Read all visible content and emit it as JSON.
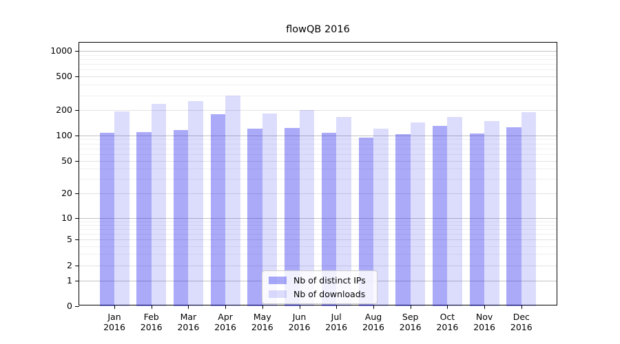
{
  "title": "flowQB 2016",
  "chart_data": {
    "type": "bar",
    "title": "flowQB 2016",
    "categories": [
      "Jan 2016",
      "Feb 2016",
      "Mar 2016",
      "Apr 2016",
      "May 2016",
      "Jun 2016",
      "Jul 2016",
      "Aug 2016",
      "Sep 2016",
      "Oct 2016",
      "Nov 2016",
      "Dec 2016"
    ],
    "series": [
      {
        "name": "Nb of distinct IPs",
        "color": "rgba(20,20,235,0.36)",
        "values": [
          107,
          110,
          116,
          180,
          120,
          123,
          108,
          94,
          103,
          130,
          105,
          124
        ]
      },
      {
        "name": "Nb of downloads",
        "color": "rgba(20,20,235,0.15)",
        "values": [
          195,
          240,
          258,
          295,
          182,
          200,
          168,
          121,
          143,
          168,
          148,
          190
        ]
      }
    ],
    "xlabel": "",
    "ylabel": "",
    "yscale": "symlog",
    "yticks": [
      0,
      1,
      2,
      5,
      10,
      20,
      50,
      100,
      200,
      500,
      1000
    ],
    "ylim": [
      0,
      1280
    ],
    "grid": true,
    "legend_position": "lower center",
    "grid_major_color": "#c2c2c2",
    "grid_tick_color": "#e2e2e2",
    "grid_minor_color": "#f0f0f0"
  }
}
